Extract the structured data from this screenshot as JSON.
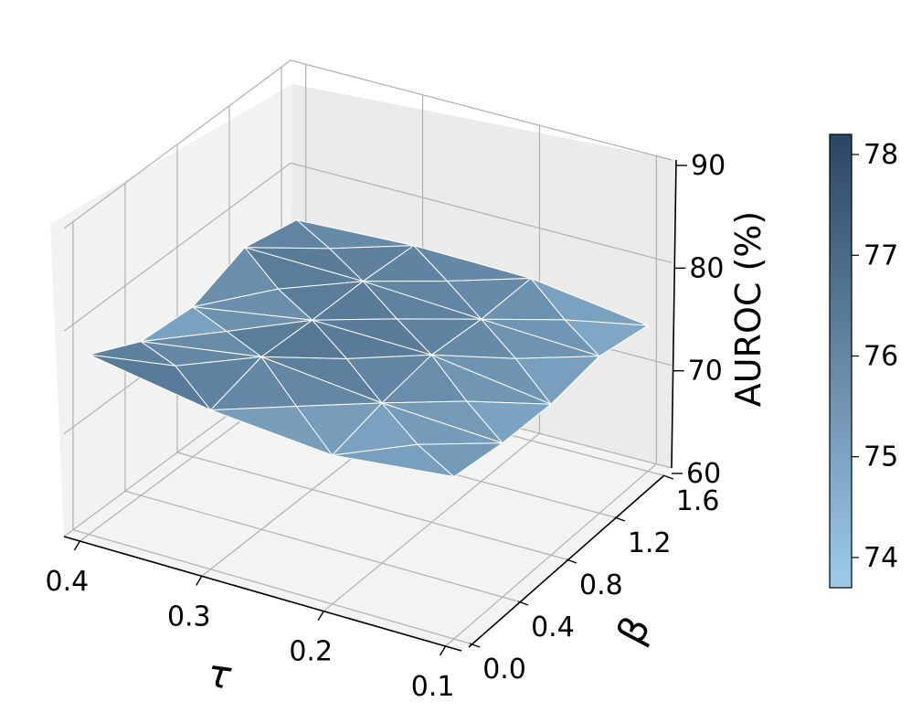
{
  "chart_data": {
    "type": "surface",
    "axes": {
      "x": {
        "label": "τ",
        "ticks": [
          "0.4",
          "0.3",
          "0.2",
          "0.1"
        ],
        "values": [
          0.4,
          0.3,
          0.2,
          0.1
        ]
      },
      "y": {
        "label": "β",
        "ticks": [
          "0.0",
          "0.4",
          "0.8",
          "1.2",
          "1.6"
        ],
        "values": [
          0.0,
          0.4,
          0.8,
          1.2,
          1.6
        ]
      },
      "z": {
        "label": "AUROC (%)",
        "ticks": [
          "60",
          "70",
          "80",
          "90"
        ],
        "values": [
          60,
          70,
          80,
          90
        ],
        "zlim": [
          60,
          90
        ]
      }
    },
    "grid": true,
    "colormap": {
      "min_color": "#9ecae9",
      "max_color": "#2b4663",
      "vmin": 73.7,
      "vmax": 78.2
    },
    "colorbar": {
      "ticks": [
        "74",
        "75",
        "76",
        "77",
        "78"
      ],
      "values": [
        74,
        75,
        76,
        77,
        78
      ],
      "range": [
        73.7,
        78.2
      ],
      "placement": "right"
    },
    "surface": {
      "tau": [
        0.4,
        0.3,
        0.2,
        0.1
      ],
      "beta": [
        0.0,
        0.4,
        0.8,
        1.2,
        1.6
      ],
      "z": [
        [
          75.5,
          76.6,
          74.6,
          75.0,
          77.5
        ],
        [
          76.0,
          76.4,
          76.5,
          76.8,
          75.5
        ],
        [
          75.8,
          75.8,
          76.3,
          75.6,
          74.5
        ],
        [
          74.2,
          75.3,
          74.7,
          75.0,
          75.8
        ]
      ]
    }
  }
}
